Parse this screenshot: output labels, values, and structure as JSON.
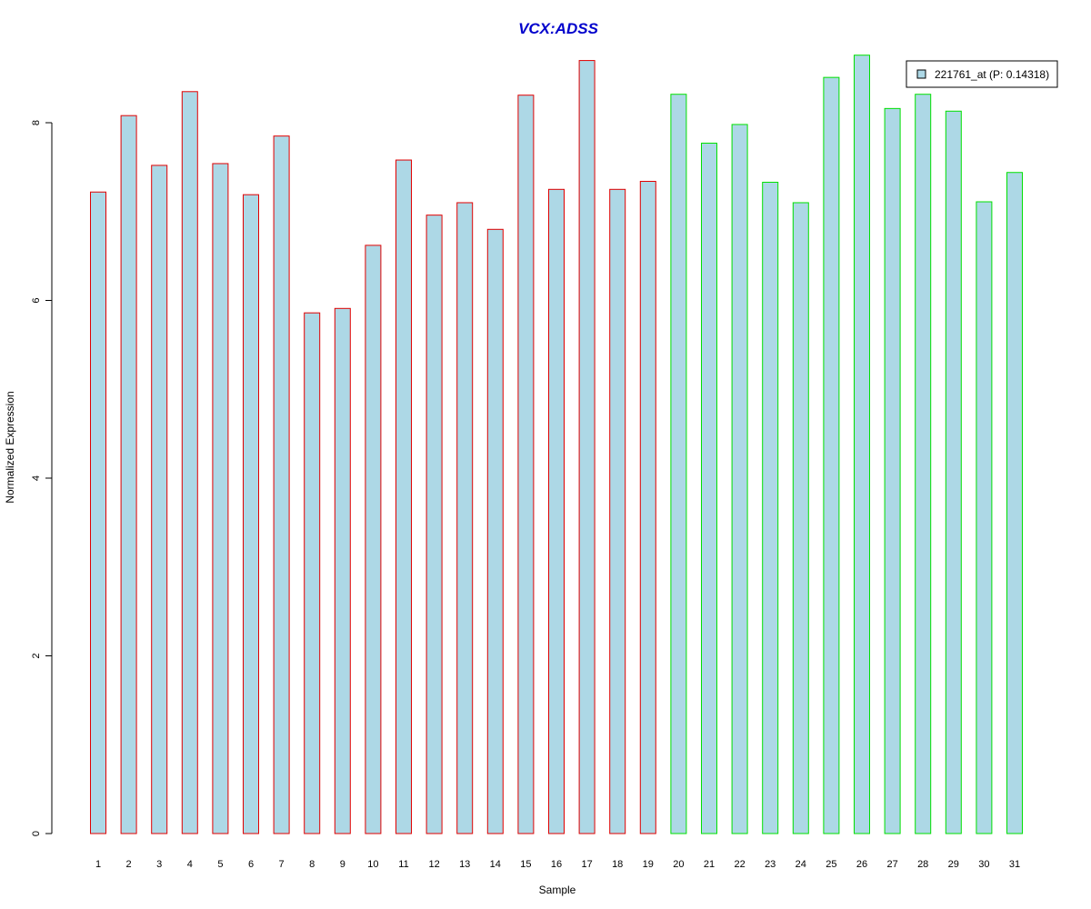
{
  "chart_data": {
    "type": "bar",
    "title": "VCX:ADSS",
    "xlabel": "Sample",
    "ylabel": "Normalized Expression",
    "ylim": [
      0,
      9
    ],
    "yticks": [
      0,
      2,
      4,
      6,
      8
    ],
    "grid": false,
    "legend_position": "top-right",
    "legend": {
      "label": "221761_at (P: 0.14318)"
    },
    "colors": {
      "title": "#0000cc",
      "bar_fill": "#add8e6",
      "group1_border": "#e00000",
      "group2_border": "#00e000"
    },
    "categories": [
      "1",
      "2",
      "3",
      "4",
      "5",
      "6",
      "7",
      "8",
      "9",
      "10",
      "11",
      "12",
      "13",
      "14",
      "15",
      "16",
      "17",
      "18",
      "19",
      "20",
      "21",
      "22",
      "23",
      "24",
      "25",
      "26",
      "27",
      "28",
      "29",
      "30",
      "31"
    ],
    "values": [
      7.22,
      8.08,
      7.52,
      8.35,
      7.54,
      7.19,
      7.85,
      5.86,
      5.91,
      6.62,
      7.58,
      6.96,
      7.1,
      6.8,
      8.31,
      7.25,
      8.7,
      7.25,
      7.34,
      8.32,
      7.77,
      7.98,
      7.33,
      7.1,
      8.51,
      8.76,
      8.16,
      8.32,
      8.13,
      7.11,
      7.44
    ],
    "groups": [
      1,
      1,
      1,
      1,
      1,
      1,
      1,
      1,
      1,
      1,
      1,
      1,
      1,
      1,
      1,
      1,
      1,
      1,
      1,
      2,
      2,
      2,
      2,
      2,
      2,
      2,
      2,
      2,
      2,
      2,
      2
    ]
  }
}
